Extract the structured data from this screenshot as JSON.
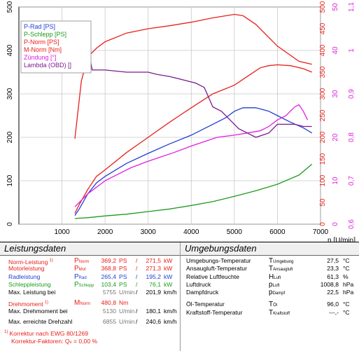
{
  "chart_data": {
    "type": "line",
    "xlabel": "n [U/min]",
    "xlim": [
      0,
      7000
    ],
    "x_ticks": [
      1000,
      2000,
      3000,
      4000,
      5000,
      6000,
      7000
    ],
    "axes": [
      {
        "id": "ps",
        "side": "left",
        "ylim": [
          0,
          500
        ],
        "ticks": [
          0,
          100,
          200,
          300,
          400,
          500
        ]
      },
      {
        "id": "nm",
        "side": "right",
        "ylim": [
          0,
          500
        ],
        "ticks": [
          0,
          50,
          100,
          150,
          200,
          250,
          300,
          350,
          400,
          450,
          500
        ]
      },
      {
        "id": "deg",
        "side": "right",
        "ylim": [
          0,
          50
        ],
        "ticks": [
          0,
          10,
          20,
          30,
          40,
          50
        ]
      },
      {
        "id": "lambda",
        "side": "right",
        "ylim": [
          0.6,
          1.1
        ],
        "ticks": [
          0.6,
          0.7,
          0.8,
          0.9,
          1,
          1.1
        ]
      }
    ],
    "grid": true,
    "legend_position": "top-left",
    "series": [
      {
        "name": "P-Rad [PS]",
        "axis": "ps",
        "color": "#1f3fd6",
        "x": [
          1300,
          1400,
          1600,
          1800,
          2000,
          2500,
          3000,
          3500,
          4000,
          4500,
          4800,
          5000,
          5200,
          5500,
          5800,
          6000,
          6300,
          6600,
          6800
        ],
        "y": [
          20,
          35,
          70,
          95,
          110,
          140,
          163,
          185,
          205,
          230,
          245,
          260,
          268,
          268,
          260,
          250,
          235,
          222,
          210
        ]
      },
      {
        "name": "P-Schlepp [PS]",
        "axis": "ps",
        "color": "#1d9b1d",
        "x": [
          1300,
          1600,
          2000,
          2500,
          3000,
          3500,
          4000,
          4500,
          5000,
          5500,
          6000,
          6500,
          6800
        ],
        "y": [
          13,
          15,
          19,
          23,
          29,
          35,
          43,
          52,
          64,
          77,
          92,
          113,
          138
        ]
      },
      {
        "name": "P-Norm [PS]",
        "axis": "ps",
        "color": "#e8201a",
        "x": [
          1300,
          1400,
          1600,
          1800,
          2000,
          2500,
          3000,
          3500,
          4000,
          4500,
          5000,
          5300,
          5600,
          5800,
          6000,
          6300,
          6600,
          6800
        ],
        "y": [
          25,
          45,
          80,
          110,
          125,
          165,
          200,
          235,
          268,
          300,
          320,
          340,
          360,
          365,
          367,
          365,
          358,
          350
        ]
      },
      {
        "name": "M-Norm [Nm]",
        "axis": "nm",
        "color": "#e8201a",
        "x": [
          1300,
          1450,
          1600,
          1800,
          2000,
          2500,
          3000,
          3500,
          4000,
          4500,
          5000,
          5200,
          5500,
          6000,
          6500,
          6800
        ],
        "y": [
          197,
          330,
          385,
          405,
          420,
          440,
          450,
          457,
          465,
          475,
          483,
          480,
          460,
          410,
          375,
          368
        ]
      },
      {
        "name": "Zündung [°]",
        "axis": "deg",
        "color": "#e020e0",
        "x": [
          1300,
          1400,
          1500,
          1600,
          1800,
          2000,
          2300,
          2600,
          3000,
          3300,
          3600,
          4000,
          4300,
          4600,
          5000,
          5300,
          5600,
          5800,
          6000,
          6200,
          6400,
          6500,
          6600,
          6700
        ],
        "y": [
          4,
          5,
          6,
          7,
          8.5,
          10,
          11.5,
          13,
          14.5,
          15.5,
          16.5,
          18,
          19,
          20,
          20.5,
          21,
          21.5,
          22.5,
          24,
          25,
          27,
          27.5,
          26,
          24
        ]
      },
      {
        "name": "Lambda (OBD) []",
        "axis": "lambda",
        "color": "#7b1a8f",
        "x": [
          1600,
          1700,
          2000,
          2500,
          3000,
          3200,
          3500,
          3900,
          4100,
          4300,
          4500,
          4700,
          4900,
          5100,
          5300,
          5500,
          5800,
          6000,
          6200,
          6400,
          6600,
          6800
        ],
        "y": [
          1.01,
          0.955,
          0.955,
          0.95,
          0.95,
          0.945,
          0.94,
          0.93,
          0.925,
          0.915,
          0.87,
          0.86,
          0.84,
          0.82,
          0.81,
          0.8,
          0.81,
          0.83,
          0.83,
          0.83,
          0.825,
          0.825
        ]
      }
    ]
  },
  "leistung": {
    "title": "Leistungsdaten",
    "rows": [
      {
        "label": "Norm-Leistung",
        "sup": "1)",
        "sym": "P",
        "sub": "Norm",
        "v1": "369,2",
        "u1": "PS",
        "sep": "/",
        "v2": "271,5",
        "u2": "kW",
        "color": "red"
      },
      {
        "label": "Motorleistung",
        "sup": "",
        "sym": "P",
        "sub": "Mot",
        "v1": "368,8",
        "u1": "PS",
        "sep": "/",
        "v2": "271,3",
        "u2": "kW",
        "color": "red"
      },
      {
        "label": "Radleistung",
        "sup": "",
        "sym": "P",
        "sub": "Rad",
        "v1": "265,4",
        "u1": "PS",
        "sep": "/",
        "v2": "195,2",
        "u2": "kW",
        "color": "blue"
      },
      {
        "label": "Schleppleistung",
        "sup": "",
        "sym": "P",
        "sub": "Schlepp",
        "v1": "103,4",
        "u1": "PS",
        "sep": "/",
        "v2": "76,1",
        "u2": "kW",
        "color": "green"
      },
      {
        "label": "Max. Leistung bei",
        "sup": "",
        "sym": "",
        "sub": "",
        "v1": "5755",
        "u1": "U/min",
        "sep": "/",
        "v2": "201,9",
        "u2": "km/h",
        "color": "plain"
      }
    ],
    "dm_rows": [
      {
        "label": "Drehmoment",
        "sup": "1)",
        "sym": "M",
        "sub": "Norm",
        "v1": "480,8",
        "u1": "Nm",
        "sep": "",
        "v2": "",
        "u2": "",
        "color": "red"
      },
      {
        "label": "Max. Drehmoment bei",
        "sup": "",
        "sym": "",
        "sub": "",
        "v1": "5130",
        "u1": "U/min",
        "sep": "/",
        "v2": "180,1",
        "u2": "km/h",
        "color": "plain"
      }
    ],
    "max_speed": {
      "label": "Max. erreichte Drehzahl",
      "v1": "6855",
      "u1": "U/min",
      "sep": "/",
      "v2": "240,6",
      "u2": "km/h"
    },
    "note1": "Korrektur nach EWG 80/1269",
    "note1_sup": "1)",
    "note2_label": "Korrektur-Faktoren:",
    "note2_sym": "Q",
    "note2_sub": "v",
    "note2_value": "=   0,00 %"
  },
  "umgebung": {
    "title": "Umgebungsdaten",
    "rows": [
      {
        "label": "Umgebungs-Temperatur",
        "sym": "T",
        "sub": "Umgebung",
        "value": "27,5",
        "unit": "°C"
      },
      {
        "label": "Ansaugluft-Temperatur",
        "sym": "T",
        "sub": "Ansaugluft",
        "value": "23,3",
        "unit": "°C"
      },
      {
        "label": "Relative Luftfeuchte",
        "sym": "H",
        "sub": "Luft",
        "value": "61,3",
        "unit": "%"
      },
      {
        "label": "Luftdruck",
        "sym": "p",
        "sub": "Luft",
        "value": "1008,8",
        "unit": "hPa"
      },
      {
        "label": "Dampfdruck",
        "sym": "p",
        "sub": "Dampf",
        "value": "22,5",
        "unit": "hPa"
      }
    ],
    "rows2": [
      {
        "label": "Öl-Temperatur",
        "sym": "T",
        "sub": "Öl",
        "value": "96,0",
        "unit": "°C"
      },
      {
        "label": "Kraftstoff-Temperatur",
        "sym": "T",
        "sub": "Kraftstoff",
        "value": "---,-",
        "unit": "°C"
      }
    ]
  }
}
